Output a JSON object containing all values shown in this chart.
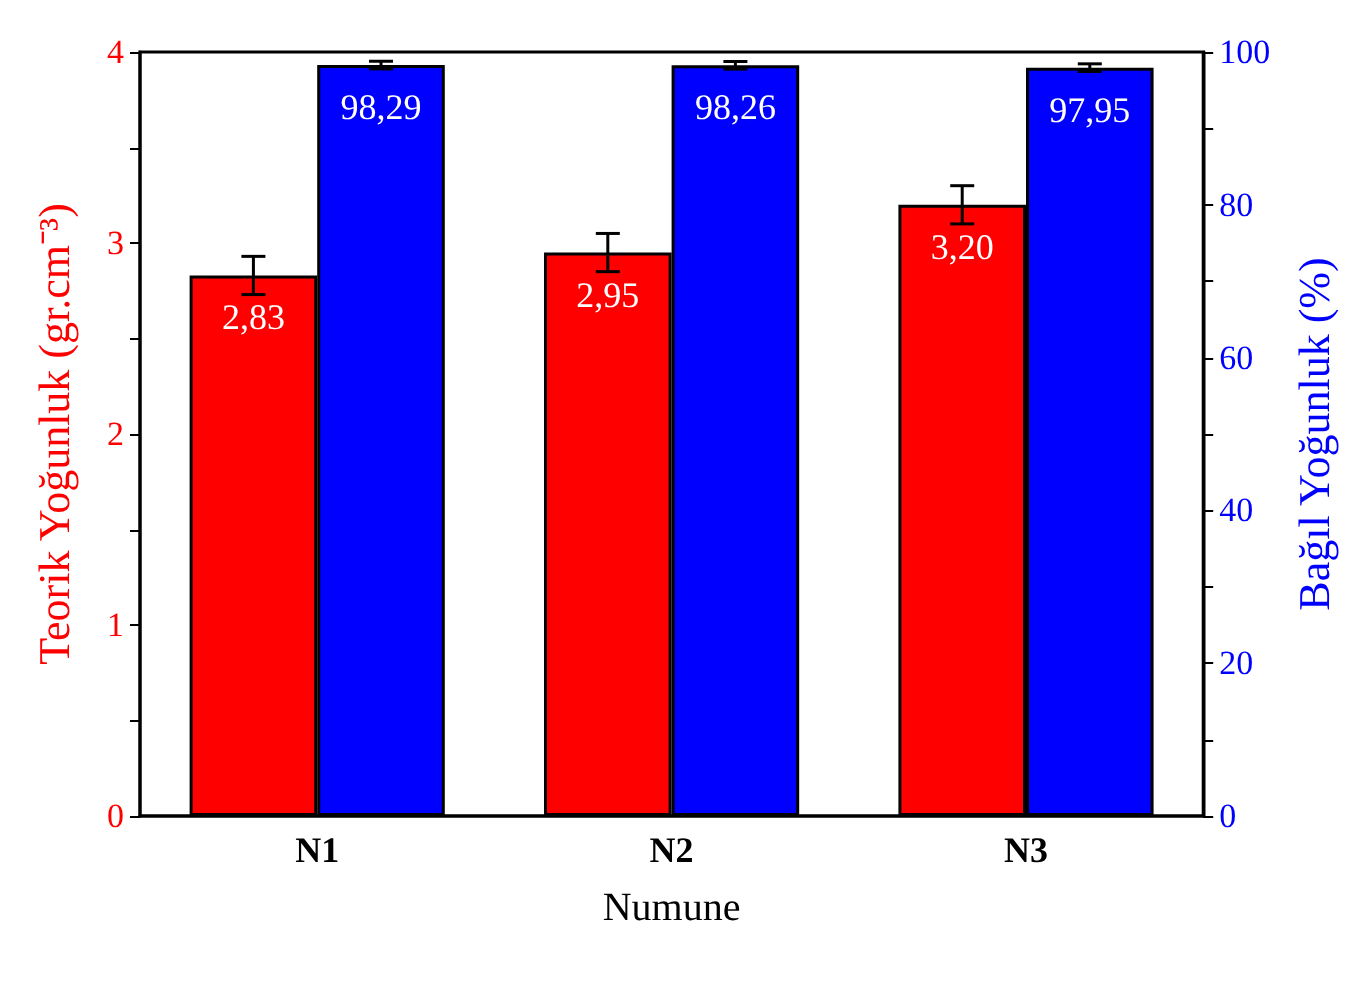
{
  "chart_data": {
    "type": "bar",
    "xlabel": "Numune",
    "ylabel": "Teorik Yoğunluk (gr.cm⁻³)",
    "y2label": "Bağıl Yoğunluk (%)",
    "categories": [
      "N1",
      "N2",
      "N3"
    ],
    "series": [
      {
        "color": "#ff0000",
        "values": [
          2.83,
          2.95,
          3.2
        ],
        "errors": [
          0.1,
          0.1,
          0.1
        ],
        "value_labels": [
          "2,83",
          "2,95",
          "3,20"
        ]
      },
      {
        "color": "#0000ff",
        "axis": "y2",
        "values": [
          98.29,
          98.26,
          97.95
        ],
        "errors": [
          0.5,
          0.5,
          0.5
        ],
        "value_labels": [
          "98,29",
          "98,26",
          "97,95"
        ]
      }
    ],
    "ylim": [
      0,
      4
    ],
    "yticks": [
      0,
      {
        "value": 0.5,
        "label": null
      },
      1,
      {
        "value": 1.5,
        "label": null
      },
      2,
      {
        "value": 2.5,
        "label": null
      },
      3,
      {
        "value": 3.5,
        "label": null
      },
      4
    ],
    "y2lim": [
      0,
      100
    ],
    "y2ticks": [
      0,
      {
        "value": 10,
        "label": null
      },
      20,
      {
        "value": 30,
        "label": null
      },
      40,
      {
        "value": 50,
        "label": null
      },
      60,
      {
        "value": 70,
        "label": null
      },
      80,
      {
        "value": 90,
        "label": null
      },
      100
    ],
    "grid": false
  }
}
